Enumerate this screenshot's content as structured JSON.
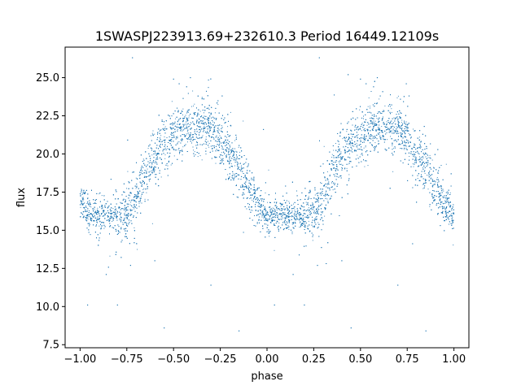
{
  "chart_data": {
    "type": "scatter",
    "title": "1SWASPJ223913.69+232610.3 Period 16449.12109s",
    "xlabel": "phase",
    "ylabel": "flux",
    "xlim": [
      -1.08,
      1.08
    ],
    "ylim": [
      7.3,
      27.0
    ],
    "xticks": [
      -1.0,
      -0.75,
      -0.5,
      -0.25,
      0.0,
      0.25,
      0.5,
      0.75,
      1.0
    ],
    "xtick_labels": [
      "−1.00",
      "−0.75",
      "−0.50",
      "−0.25",
      "0.00",
      "0.25",
      "0.50",
      "0.75",
      "1.00"
    ],
    "yticks": [
      7.5,
      10.0,
      12.5,
      15.0,
      17.5,
      20.0,
      22.5,
      25.0
    ],
    "ytick_labels": [
      "7.5",
      "10.0",
      "12.5",
      "15.0",
      "17.5",
      "20.0",
      "22.5",
      "25.0"
    ],
    "grid": false,
    "marker_color": "#1f77b4",
    "curve": {
      "description_of_trend": "phase-folded light curve repeated over two cycles",
      "x": [
        -1.0,
        -0.95,
        -0.9,
        -0.85,
        -0.8,
        -0.75,
        -0.7,
        -0.65,
        -0.6,
        -0.55,
        -0.5,
        -0.45,
        -0.4,
        -0.35,
        -0.3,
        -0.25,
        -0.2,
        -0.15,
        -0.1,
        -0.05,
        0.0,
        0.05,
        0.1,
        0.15,
        0.2,
        0.25,
        0.3,
        0.35,
        0.4,
        0.45,
        0.5,
        0.55,
        0.6,
        0.65,
        0.7,
        0.75,
        0.8,
        0.85,
        0.9,
        0.95,
        1.0
      ],
      "y": [
        17.0,
        16.0,
        15.9,
        15.9,
        16.0,
        16.1,
        17.0,
        18.8,
        20.0,
        20.8,
        21.2,
        21.6,
        21.7,
        21.8,
        21.6,
        21.0,
        20.0,
        19.0,
        17.8,
        16.6,
        16.0,
        15.9,
        15.9,
        15.9,
        16.0,
        16.1,
        17.0,
        18.8,
        20.0,
        20.8,
        21.2,
        21.6,
        21.7,
        21.8,
        21.6,
        21.0,
        20.0,
        19.0,
        17.8,
        16.6,
        16.0
      ]
    },
    "outliers": [
      {
        "x": -0.72,
        "y": 26.3
      },
      {
        "x": -0.5,
        "y": 24.9
      },
      {
        "x": -0.47,
        "y": 24.6
      },
      {
        "x": -0.43,
        "y": 24.4
      },
      {
        "x": -0.41,
        "y": 25.0
      },
      {
        "x": -0.24,
        "y": 23.8
      },
      {
        "x": 0.28,
        "y": 26.3
      },
      {
        "x": 0.5,
        "y": 24.9
      },
      {
        "x": 0.53,
        "y": 24.6
      },
      {
        "x": 0.57,
        "y": 24.4
      },
      {
        "x": 0.59,
        "y": 25.0
      },
      {
        "x": 0.76,
        "y": 23.8
      },
      {
        "x": -0.96,
        "y": 10.1
      },
      {
        "x": -0.8,
        "y": 10.1
      },
      {
        "x": -0.55,
        "y": 8.6
      },
      {
        "x": -0.3,
        "y": 11.4
      },
      {
        "x": 0.04,
        "y": 10.1
      },
      {
        "x": 0.2,
        "y": 10.1
      },
      {
        "x": 0.45,
        "y": 8.6
      },
      {
        "x": 0.7,
        "y": 11.4
      },
      {
        "x": -0.86,
        "y": 12.1
      },
      {
        "x": 0.14,
        "y": 12.1
      },
      {
        "x": -0.15,
        "y": 8.4
      },
      {
        "x": 0.85,
        "y": 8.4
      },
      {
        "x": -0.73,
        "y": 12.7
      },
      {
        "x": 0.27,
        "y": 12.7
      },
      {
        "x": -0.6,
        "y": 13.0
      },
      {
        "x": 0.4,
        "y": 13.0
      }
    ]
  }
}
